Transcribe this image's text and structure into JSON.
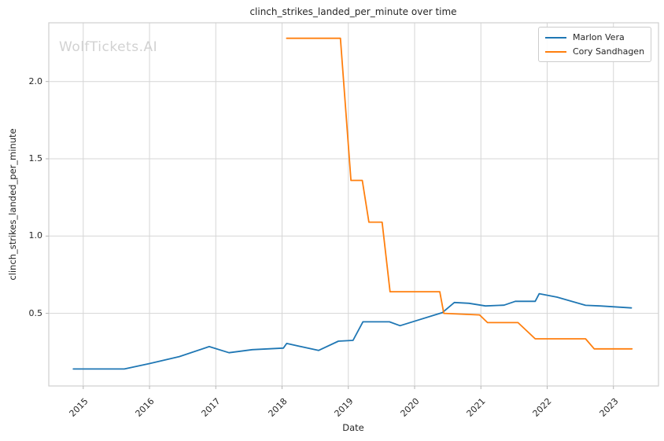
{
  "figure": {
    "watermark": "WolfTickets.AI"
  },
  "chart_data": {
    "type": "line",
    "title": "clinch_strikes_landed_per_minute over time",
    "xlabel": "Date",
    "ylabel": "clinch_strikes_landed_per_minute",
    "x_ticks": [
      2015,
      2016,
      2017,
      2018,
      2019,
      2020,
      2021,
      2022,
      2023
    ],
    "y_ticks": [
      0.5,
      1.0,
      1.5,
      2.0
    ],
    "xlim": [
      2014.48,
      2023.68
    ],
    "ylim": [
      0.03,
      2.38
    ],
    "grid": true,
    "legend_position": "upper right",
    "colors": {
      "grid": "#d6d6d6",
      "spine": "#cfcfcf",
      "tick_mark": "#b5b5b5",
      "text": "#262626",
      "watermark": "#d2d2d2"
    },
    "series": [
      {
        "name": "Marlon Vera",
        "color": "#1f77b4",
        "points": [
          [
            2014.85,
            0.14
          ],
          [
            2015.62,
            0.14
          ],
          [
            2016.0,
            0.175
          ],
          [
            2016.45,
            0.22
          ],
          [
            2016.9,
            0.285
          ],
          [
            2017.2,
            0.245
          ],
          [
            2017.55,
            0.265
          ],
          [
            2018.02,
            0.275
          ],
          [
            2018.07,
            0.305
          ],
          [
            2018.55,
            0.26
          ],
          [
            2018.85,
            0.32
          ],
          [
            2019.07,
            0.325
          ],
          [
            2019.22,
            0.445
          ],
          [
            2019.62,
            0.445
          ],
          [
            2019.78,
            0.42
          ],
          [
            2020.42,
            0.505
          ],
          [
            2020.6,
            0.57
          ],
          [
            2020.82,
            0.565
          ],
          [
            2021.07,
            0.548
          ],
          [
            2021.35,
            0.553
          ],
          [
            2021.52,
            0.578
          ],
          [
            2021.82,
            0.578
          ],
          [
            2021.88,
            0.627
          ],
          [
            2022.15,
            0.605
          ],
          [
            2022.58,
            0.552
          ],
          [
            2022.8,
            0.548
          ],
          [
            2023.27,
            0.535
          ]
        ]
      },
      {
        "name": "Cory Sandhagen",
        "color": "#ff7f0e",
        "points": [
          [
            2018.07,
            2.28
          ],
          [
            2018.88,
            2.28
          ],
          [
            2019.04,
            1.36
          ],
          [
            2019.21,
            1.36
          ],
          [
            2019.31,
            1.09
          ],
          [
            2019.51,
            1.09
          ],
          [
            2019.63,
            0.64
          ],
          [
            2020.38,
            0.64
          ],
          [
            2020.44,
            0.5
          ],
          [
            2020.98,
            0.49
          ],
          [
            2021.1,
            0.44
          ],
          [
            2021.56,
            0.44
          ],
          [
            2021.82,
            0.335
          ],
          [
            2022.58,
            0.335
          ],
          [
            2022.71,
            0.27
          ],
          [
            2023.28,
            0.27
          ]
        ]
      }
    ]
  }
}
